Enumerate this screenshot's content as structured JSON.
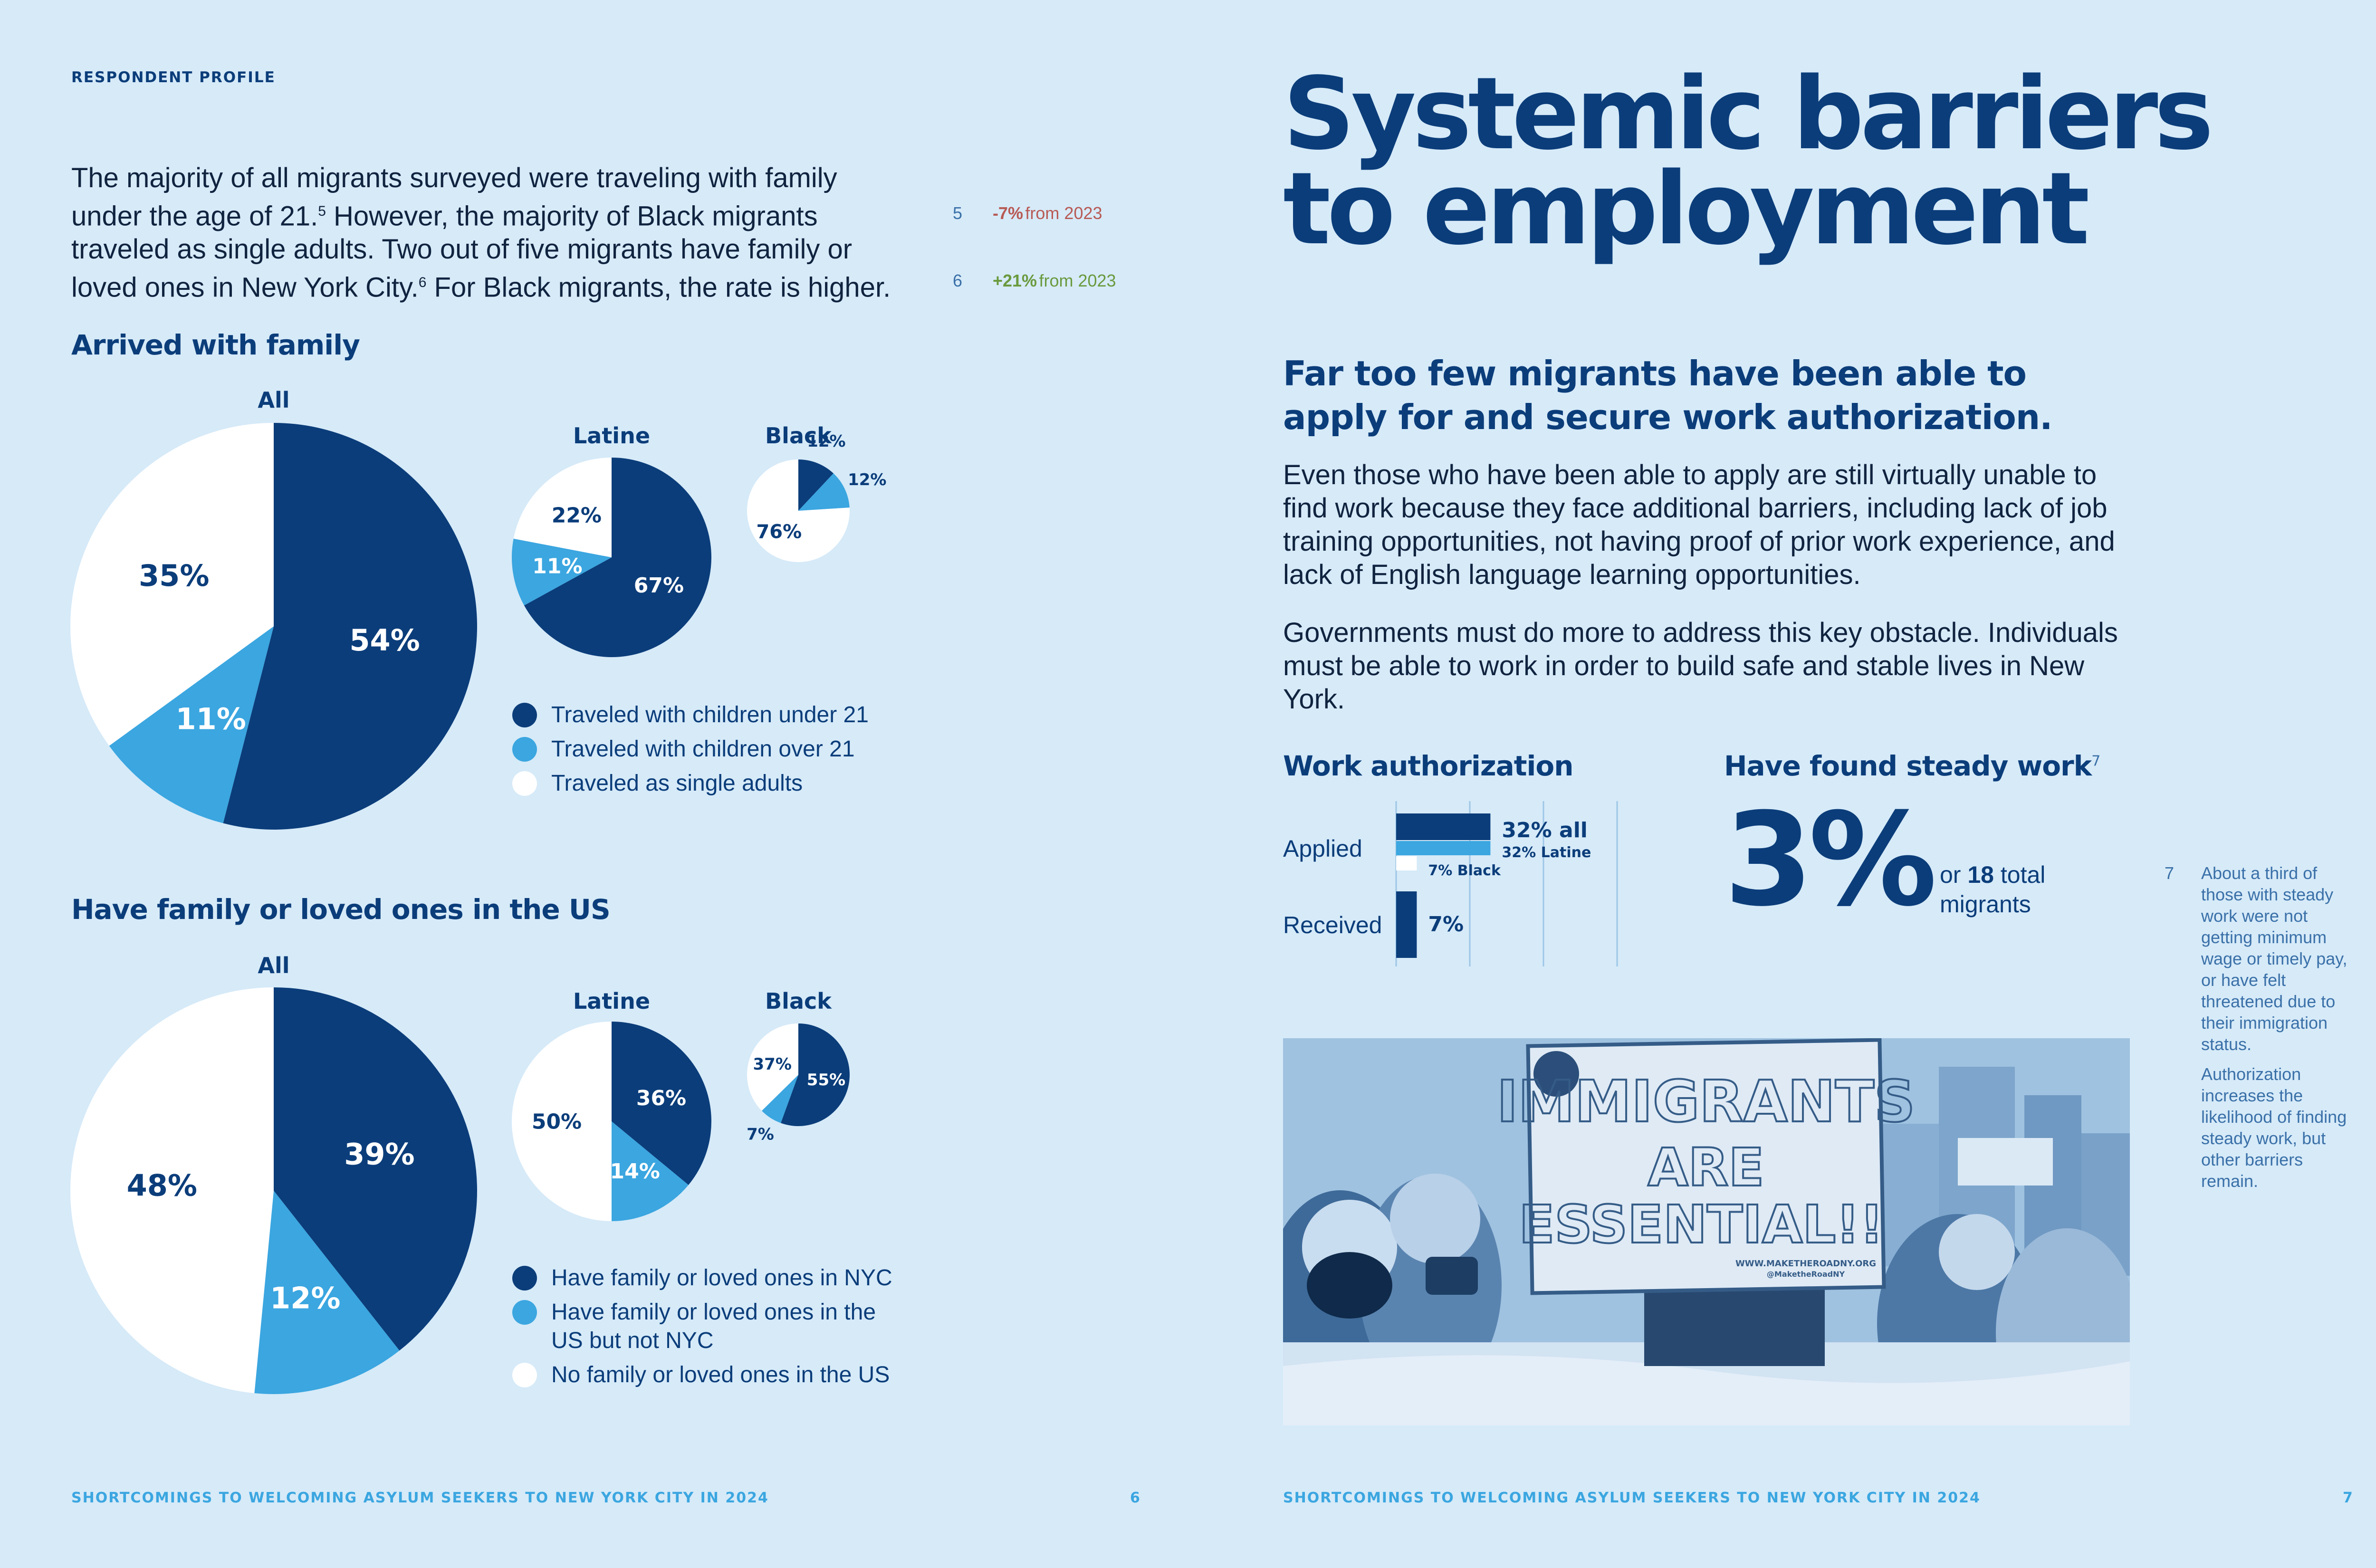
{
  "left": {
    "eyebrow": "RESPONDENT PROFILE",
    "intro": [
      {
        "text": "The majority of all migrants surveyed were traveling with family"
      },
      {
        "text": "under the age of 21.",
        "sup": "5",
        "after": " However, the majority of Black migrants"
      },
      {
        "text": "traveled as single adults. Two out of five migrants have family or"
      },
      {
        "text": "loved ones in New York City.",
        "sup": "6",
        "after": " For Black migrants, the rate is higher."
      }
    ],
    "notes": [
      {
        "num": "5",
        "change": "-7%",
        "rest": "from 2023"
      },
      {
        "num": "6",
        "change": "+21%",
        "rest": "from 2023"
      }
    ],
    "section1_title": "Arrived with family",
    "section2_title": "Have family or loved ones in the US",
    "group_labels": {
      "all": "All",
      "latine": "Latine",
      "black": "Black"
    },
    "legend1": [
      "Traveled with children under 21",
      "Traveled with children over 21",
      "Traveled as single adults"
    ],
    "legend2": [
      "Have family or loved ones in NYC",
      "Have family or loved ones in the US but not NYC",
      "No family or loved ones in the US"
    ],
    "footer": "SHORTCOMINGS TO WELCOMING ASYLUM SEEKERS TO NEW YORK CITY IN 2024",
    "page_number": "6"
  },
  "right": {
    "title_line1": "Systemic barriers",
    "title_line2": "to employment",
    "subhead_line1": "Far too few migrants have been able to",
    "subhead_line2": "apply for and secure work authorization.",
    "para1": "Even those who have been able to apply are still virtually unable to find work because they face additional barriers, including lack of job training opportunities, not having proof of prior work experience, and lack of English language learning opportunities.",
    "para2": "Governments must do more to address this key obstacle. Individuals must be able to work in order to build safe and stable lives in New York.",
    "work_auth_title": "Work authorization",
    "applied_label": "Applied",
    "received_label": "Received",
    "bar_labels": {
      "all": "32% all",
      "latine": "32% Latine",
      "black": "7% Black",
      "received": "7%"
    },
    "steady_title": "Have found steady work",
    "steady_sup": "7",
    "steady_big": "3%",
    "steady_or": "or",
    "steady_count": "18",
    "steady_total": "total",
    "steady_migrants": "migrants",
    "note7_num": "7",
    "note7_a": "About a third of those with steady work were not getting minimum wage or timely pay, or have felt threatened due to their immigration status.",
    "note7_b": "Authorization increases the likelihood of finding steady work, but other barriers remain.",
    "sign_line1": "IMMIGRANTS",
    "sign_line2": "ARE",
    "sign_line3": "ESSENTIAL!!",
    "sign_small1": "WWW.MAKETHEROADNY.ORG",
    "sign_small2": "@MaketheRoadNY",
    "footer": "SHORTCOMINGS TO WELCOMING ASYLUM SEEKERS TO NEW YORK CITY IN 2024",
    "page_number": "7"
  },
  "colors": {
    "navy": "#0b3d7a",
    "blue": "#3ba6e0",
    "white": "#ffffff",
    "bg": "#d6eaf8"
  },
  "chart_data": [
    {
      "type": "pie",
      "title": "Arrived with family — All",
      "categories": [
        "Traveled with children under 21",
        "Traveled with children over 21",
        "Traveled as single adults"
      ],
      "values": [
        54,
        11,
        35
      ]
    },
    {
      "type": "pie",
      "title": "Arrived with family — Latine",
      "categories": [
        "Traveled with children under 21",
        "Traveled with children over 21",
        "Traveled as single adults"
      ],
      "values": [
        67,
        11,
        22
      ]
    },
    {
      "type": "pie",
      "title": "Arrived with family — Black",
      "categories": [
        "Traveled with children under 21",
        "Traveled with children over 21",
        "Traveled as single adults"
      ],
      "values": [
        12,
        12,
        76
      ]
    },
    {
      "type": "pie",
      "title": "Have family or loved ones in the US — All",
      "categories": [
        "Have family or loved ones in NYC",
        "Have family or loved ones in the US but not NYC",
        "No family or loved ones in the US"
      ],
      "values": [
        39,
        12,
        48
      ]
    },
    {
      "type": "pie",
      "title": "Have family or loved ones in the US — Latine",
      "categories": [
        "Have family or loved ones in NYC",
        "Have family or loved ones in the US but not NYC",
        "No family or loved ones in the US"
      ],
      "values": [
        36,
        14,
        50
      ]
    },
    {
      "type": "pie",
      "title": "Have family or loved ones in the US — Black",
      "categories": [
        "Have family or loved ones in NYC",
        "Have family or loved ones in the US but not NYC",
        "No family or loved ones in the US"
      ],
      "values": [
        55,
        7,
        37
      ]
    },
    {
      "type": "bar",
      "title": "Work authorization",
      "categories": [
        "Applied — all",
        "Applied — Latine",
        "Applied — Black",
        "Received"
      ],
      "values": [
        32,
        32,
        7,
        7
      ],
      "unit": "%"
    }
  ]
}
